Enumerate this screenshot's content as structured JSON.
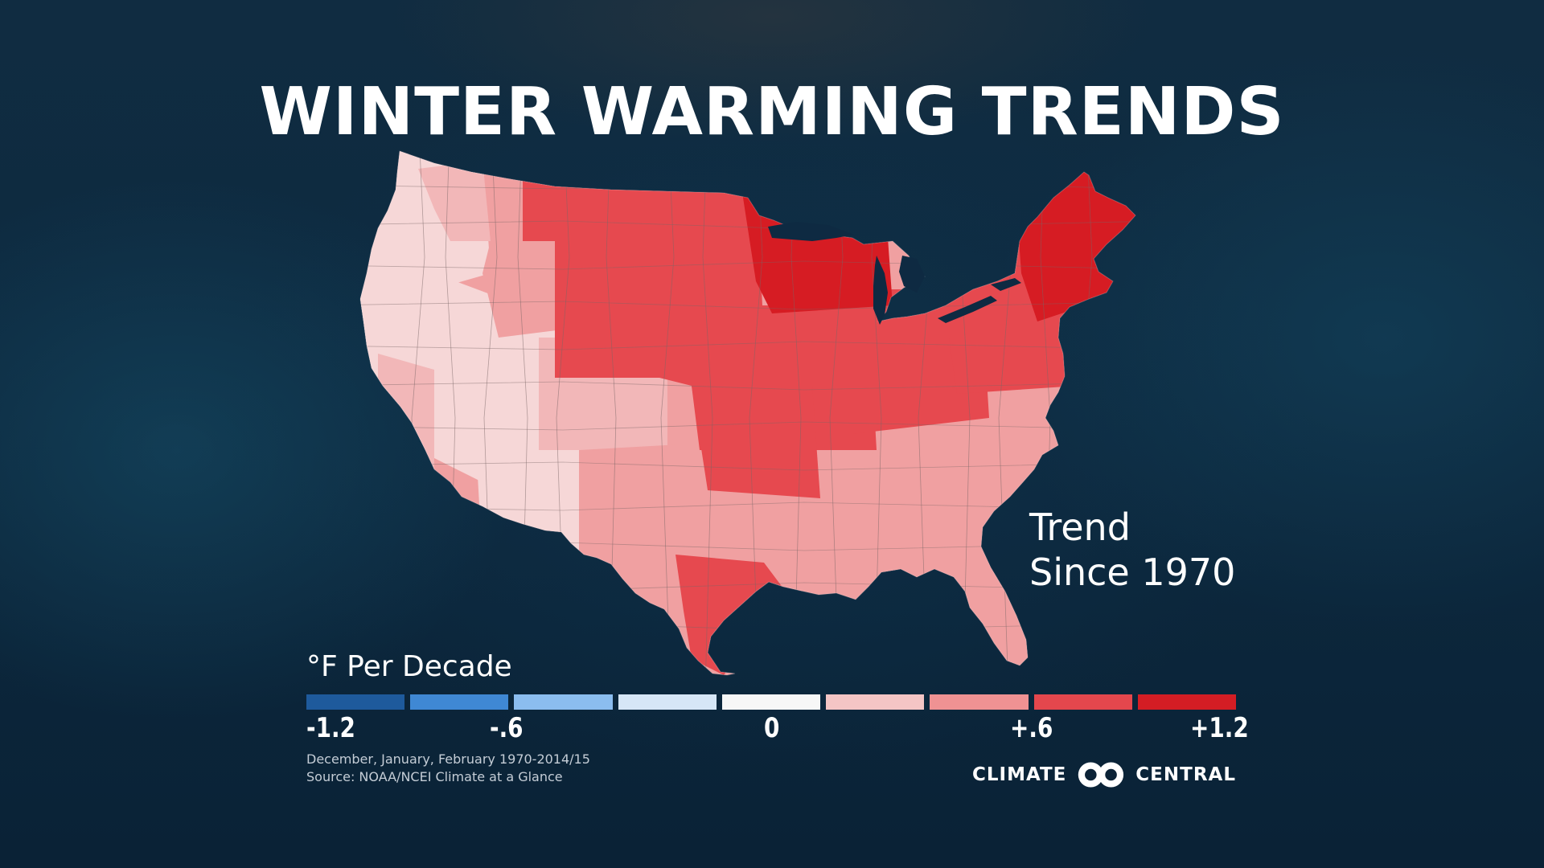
{
  "title": "WINTER WARMING TRENDS",
  "trend_label": {
    "line1": "Trend",
    "line2": "Since 1970"
  },
  "legend": {
    "title": "°F Per Decade",
    "bins": [
      "#1e5a9c",
      "#3f88d4",
      "#8bbdef",
      "#d6e6f6",
      "#f7f7f7",
      "#f4c5c5",
      "#ef9293",
      "#e4474d",
      "#d41d24"
    ],
    "ticks": {
      "min": "-1.2",
      "neg_half": "-.6",
      "zero": "0",
      "pos_half": "+.6",
      "max": "+1.2"
    }
  },
  "note": {
    "period": "December, January, February 1970-2014/15",
    "source": "Source: NOAA/NCEI Climate at a Glance"
  },
  "logo": {
    "left": "CLIMATE",
    "right": "CENTRAL"
  },
  "colors": {
    "background": "#0b2236",
    "border": "#7a6666",
    "ocean_lake": "#0e2a42"
  },
  "map_data": {
    "type": "choropleth",
    "subject": "Contiguous United States climate divisions",
    "region_trends": {
      "pacific-northwest": "lightest",
      "washington-east": "light",
      "great-basin": "lightest",
      "california": "lightest",
      "southern-california": "light",
      "arizona-new-mexico": "lightest",
      "rockies-north": "medium",
      "northern-plains": "strong",
      "upper-midwest": "strongest",
      "northeast": "strong",
      "new-england": "strongest",
      "ohio-valley": "strong",
      "kansas-missouri": "strong",
      "oklahoma": "strong",
      "south": "medium",
      "southeast": "medium",
      "florida": "medium",
      "texas-south": "strong",
      "colorado-central": "light"
    }
  }
}
